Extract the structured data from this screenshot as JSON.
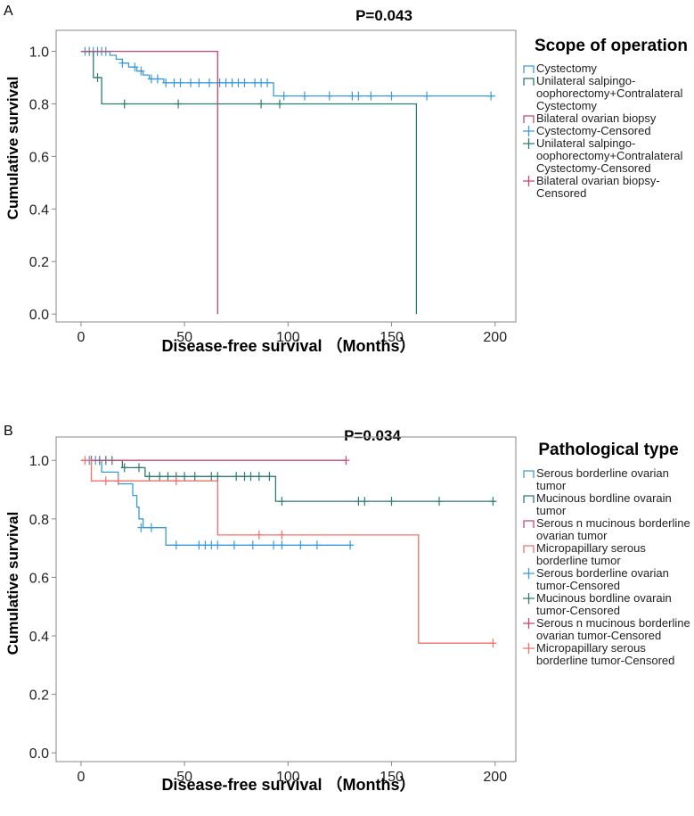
{
  "chart_data": [
    {
      "panel_label": "A",
      "type": "line",
      "title": "P=0.043",
      "xlabel": "Disease-free survival （Months）",
      "ylabel": "Cumulative survival",
      "xlim": [
        -12,
        210
      ],
      "ylim": [
        -0.03,
        1.08
      ],
      "xticks": [
        "0",
        "50",
        "100",
        "150",
        "200"
      ],
      "yticks": [
        "0.0",
        "0.2",
        "0.4",
        "0.6",
        "0.8",
        "1.0"
      ],
      "legend_title": "Scope of operation",
      "legend": [
        {
          "label": "Cystectomy",
          "kind": "line",
          "color": "#3a9ad9"
        },
        {
          "label": "Unilateral salpingo-oophorectomy+Contralateral Cystectomy",
          "kind": "line",
          "color": "#2e7b73"
        },
        {
          "label": "Bilateral ovarian biopsy",
          "kind": "line",
          "color": "#c8476a"
        },
        {
          "label": "Cystectomy-Censored",
          "kind": "censor",
          "color": "#3a9ad9"
        },
        {
          "label": "Unilateral salpingo-oophorectomy+Contralateral Cystectomy-Censored",
          "kind": "censor",
          "color": "#2e7b73"
        },
        {
          "label": "Bilateral ovarian biopsy-Censored",
          "kind": "censor",
          "color": "#c8476a"
        }
      ],
      "series": [
        {
          "name": "Cystectomy",
          "color": "#3a9ad9",
          "steps": [
            [
              0,
              1.0
            ],
            [
              14,
              0.985
            ],
            [
              17,
              0.97
            ],
            [
              20,
              0.955
            ],
            [
              23,
              0.94
            ],
            [
              27,
              0.925
            ],
            [
              30,
              0.91
            ],
            [
              33,
              0.895
            ],
            [
              40,
              0.88
            ],
            [
              93,
              0.83
            ],
            [
              200,
              0.83
            ]
          ],
          "censored": [
            [
              2,
              1.0
            ],
            [
              4,
              1.0
            ],
            [
              6,
              1.0
            ],
            [
              8,
              1.0
            ],
            [
              10,
              1.0
            ],
            [
              12,
              1.0
            ],
            [
              20,
              0.955
            ],
            [
              26,
              0.94
            ],
            [
              29,
              0.925
            ],
            [
              34,
              0.895
            ],
            [
              37,
              0.895
            ],
            [
              41,
              0.88
            ],
            [
              45,
              0.88
            ],
            [
              48,
              0.88
            ],
            [
              53,
              0.88
            ],
            [
              57,
              0.88
            ],
            [
              62,
              0.88
            ],
            [
              67,
              0.88
            ],
            [
              70,
              0.88
            ],
            [
              73,
              0.88
            ],
            [
              76,
              0.88
            ],
            [
              79,
              0.88
            ],
            [
              84,
              0.88
            ],
            [
              87,
              0.88
            ],
            [
              90,
              0.88
            ],
            [
              98,
              0.83
            ],
            [
              108,
              0.83
            ],
            [
              120,
              0.83
            ],
            [
              131,
              0.83
            ],
            [
              134,
              0.83
            ],
            [
              140,
              0.83
            ],
            [
              150,
              0.83
            ],
            [
              167,
              0.83
            ],
            [
              198,
              0.83
            ]
          ]
        },
        {
          "name": "Unilateral salpingo-oophorectomy+Contralateral Cystectomy",
          "color": "#2e7b73",
          "steps": [
            [
              0,
              1.0
            ],
            [
              6,
              0.9
            ],
            [
              10,
              0.8
            ],
            [
              162,
              0.0
            ]
          ],
          "censored": [
            [
              8,
              0.9
            ],
            [
              21,
              0.8
            ],
            [
              47,
              0.8
            ],
            [
              87,
              0.8
            ],
            [
              96,
              0.8
            ]
          ]
        },
        {
          "name": "Bilateral ovarian biopsy",
          "color": "#c8476a",
          "steps": [
            [
              0,
              1.0
            ],
            [
              66,
              0.0
            ]
          ],
          "censored": []
        }
      ]
    },
    {
      "panel_label": "B",
      "type": "line",
      "title": "P=0.034",
      "xlabel": "Disease-free survival （Months）",
      "ylabel": "Cumulative survival",
      "xlim": [
        -12,
        210
      ],
      "ylim": [
        -0.03,
        1.08
      ],
      "xticks": [
        "0",
        "50",
        "100",
        "150",
        "200"
      ],
      "yticks": [
        "0.0",
        "0.2",
        "0.4",
        "0.6",
        "0.8",
        "1.0"
      ],
      "legend_title": "Pathological type",
      "legend": [
        {
          "label": "Serous borderline ovarian tumor",
          "kind": "line",
          "color": "#3a9ad9"
        },
        {
          "label": "Mucinous bordline ovarain tumor",
          "kind": "line",
          "color": "#2e7b73"
        },
        {
          "label": "Serous n mucinous borderline ovarian tumor",
          "kind": "line",
          "color": "#c8476a"
        },
        {
          "label": "Micropapillary serous borderline tumor",
          "kind": "line",
          "color": "#f0706a"
        },
        {
          "label": "Serous borderline ovarian tumor-Censored",
          "kind": "censor",
          "color": "#3a9ad9"
        },
        {
          "label": "Mucinous bordline ovarain tumor-Censored",
          "kind": "censor",
          "color": "#2e7b73"
        },
        {
          "label": "Serous n mucinous borderline ovarian tumor-Censored",
          "kind": "censor",
          "color": "#c8476a"
        },
        {
          "label": "Micropapillary serous borderline tumor-Censored",
          "kind": "censor",
          "color": "#f0706a"
        }
      ],
      "series": [
        {
          "name": "Serous borderline ovarian tumor",
          "color": "#3a9ad9",
          "steps": [
            [
              0,
              1.0
            ],
            [
              10,
              0.96
            ],
            [
              18,
              0.92
            ],
            [
              25,
              0.88
            ],
            [
              27,
              0.84
            ],
            [
              28,
              0.8
            ],
            [
              30,
              0.77
            ],
            [
              41,
              0.71
            ],
            [
              131,
              0.71
            ]
          ],
          "censored": [
            [
              4,
              1.0
            ],
            [
              7,
              1.0
            ],
            [
              29,
              0.77
            ],
            [
              34,
              0.77
            ],
            [
              46,
              0.71
            ],
            [
              57,
              0.71
            ],
            [
              60,
              0.71
            ],
            [
              63,
              0.71
            ],
            [
              66,
              0.71
            ],
            [
              74,
              0.71
            ],
            [
              83,
              0.71
            ],
            [
              93,
              0.71
            ],
            [
              97,
              0.71
            ],
            [
              106,
              0.71
            ],
            [
              114,
              0.71
            ],
            [
              130,
              0.71
            ]
          ]
        },
        {
          "name": "Mucinous bordline ovarain tumor",
          "color": "#2e7b73",
          "steps": [
            [
              0,
              1.0
            ],
            [
              20,
              0.975
            ],
            [
              31,
              0.945
            ],
            [
              94,
              0.86
            ],
            [
              200,
              0.86
            ]
          ],
          "censored": [
            [
              5,
              1.0
            ],
            [
              9,
              1.0
            ],
            [
              12,
              1.0
            ],
            [
              15,
              1.0
            ],
            [
              21,
              0.975
            ],
            [
              28,
              0.975
            ],
            [
              33,
              0.945
            ],
            [
              38,
              0.945
            ],
            [
              42,
              0.945
            ],
            [
              46,
              0.945
            ],
            [
              50,
              0.945
            ],
            [
              55,
              0.945
            ],
            [
              63,
              0.945
            ],
            [
              66,
              0.945
            ],
            [
              75,
              0.945
            ],
            [
              79,
              0.945
            ],
            [
              82,
              0.945
            ],
            [
              86,
              0.945
            ],
            [
              91,
              0.945
            ],
            [
              97,
              0.86
            ],
            [
              134,
              0.86
            ],
            [
              137,
              0.86
            ],
            [
              150,
              0.86
            ],
            [
              173,
              0.86
            ],
            [
              199,
              0.86
            ]
          ]
        },
        {
          "name": "Serous n mucinous borderline ovarian tumor",
          "color": "#c8476a",
          "steps": [
            [
              0,
              1.0
            ],
            [
              128,
              1.0
            ]
          ],
          "censored": [
            [
              5,
              1.0
            ],
            [
              128,
              1.0
            ]
          ]
        },
        {
          "name": "Micropapillary serous borderline tumor",
          "color": "#f0706a",
          "steps": [
            [
              0,
              1.0
            ],
            [
              5,
              0.93
            ],
            [
              66,
              0.745
            ],
            [
              163,
              0.375
            ],
            [
              200,
              0.375
            ]
          ],
          "censored": [
            [
              2,
              1.0
            ],
            [
              12,
              0.93
            ],
            [
              18,
              0.93
            ],
            [
              46,
              0.93
            ],
            [
              86,
              0.745
            ],
            [
              97,
              0.745
            ],
            [
              199,
              0.375
            ]
          ]
        }
      ]
    }
  ]
}
